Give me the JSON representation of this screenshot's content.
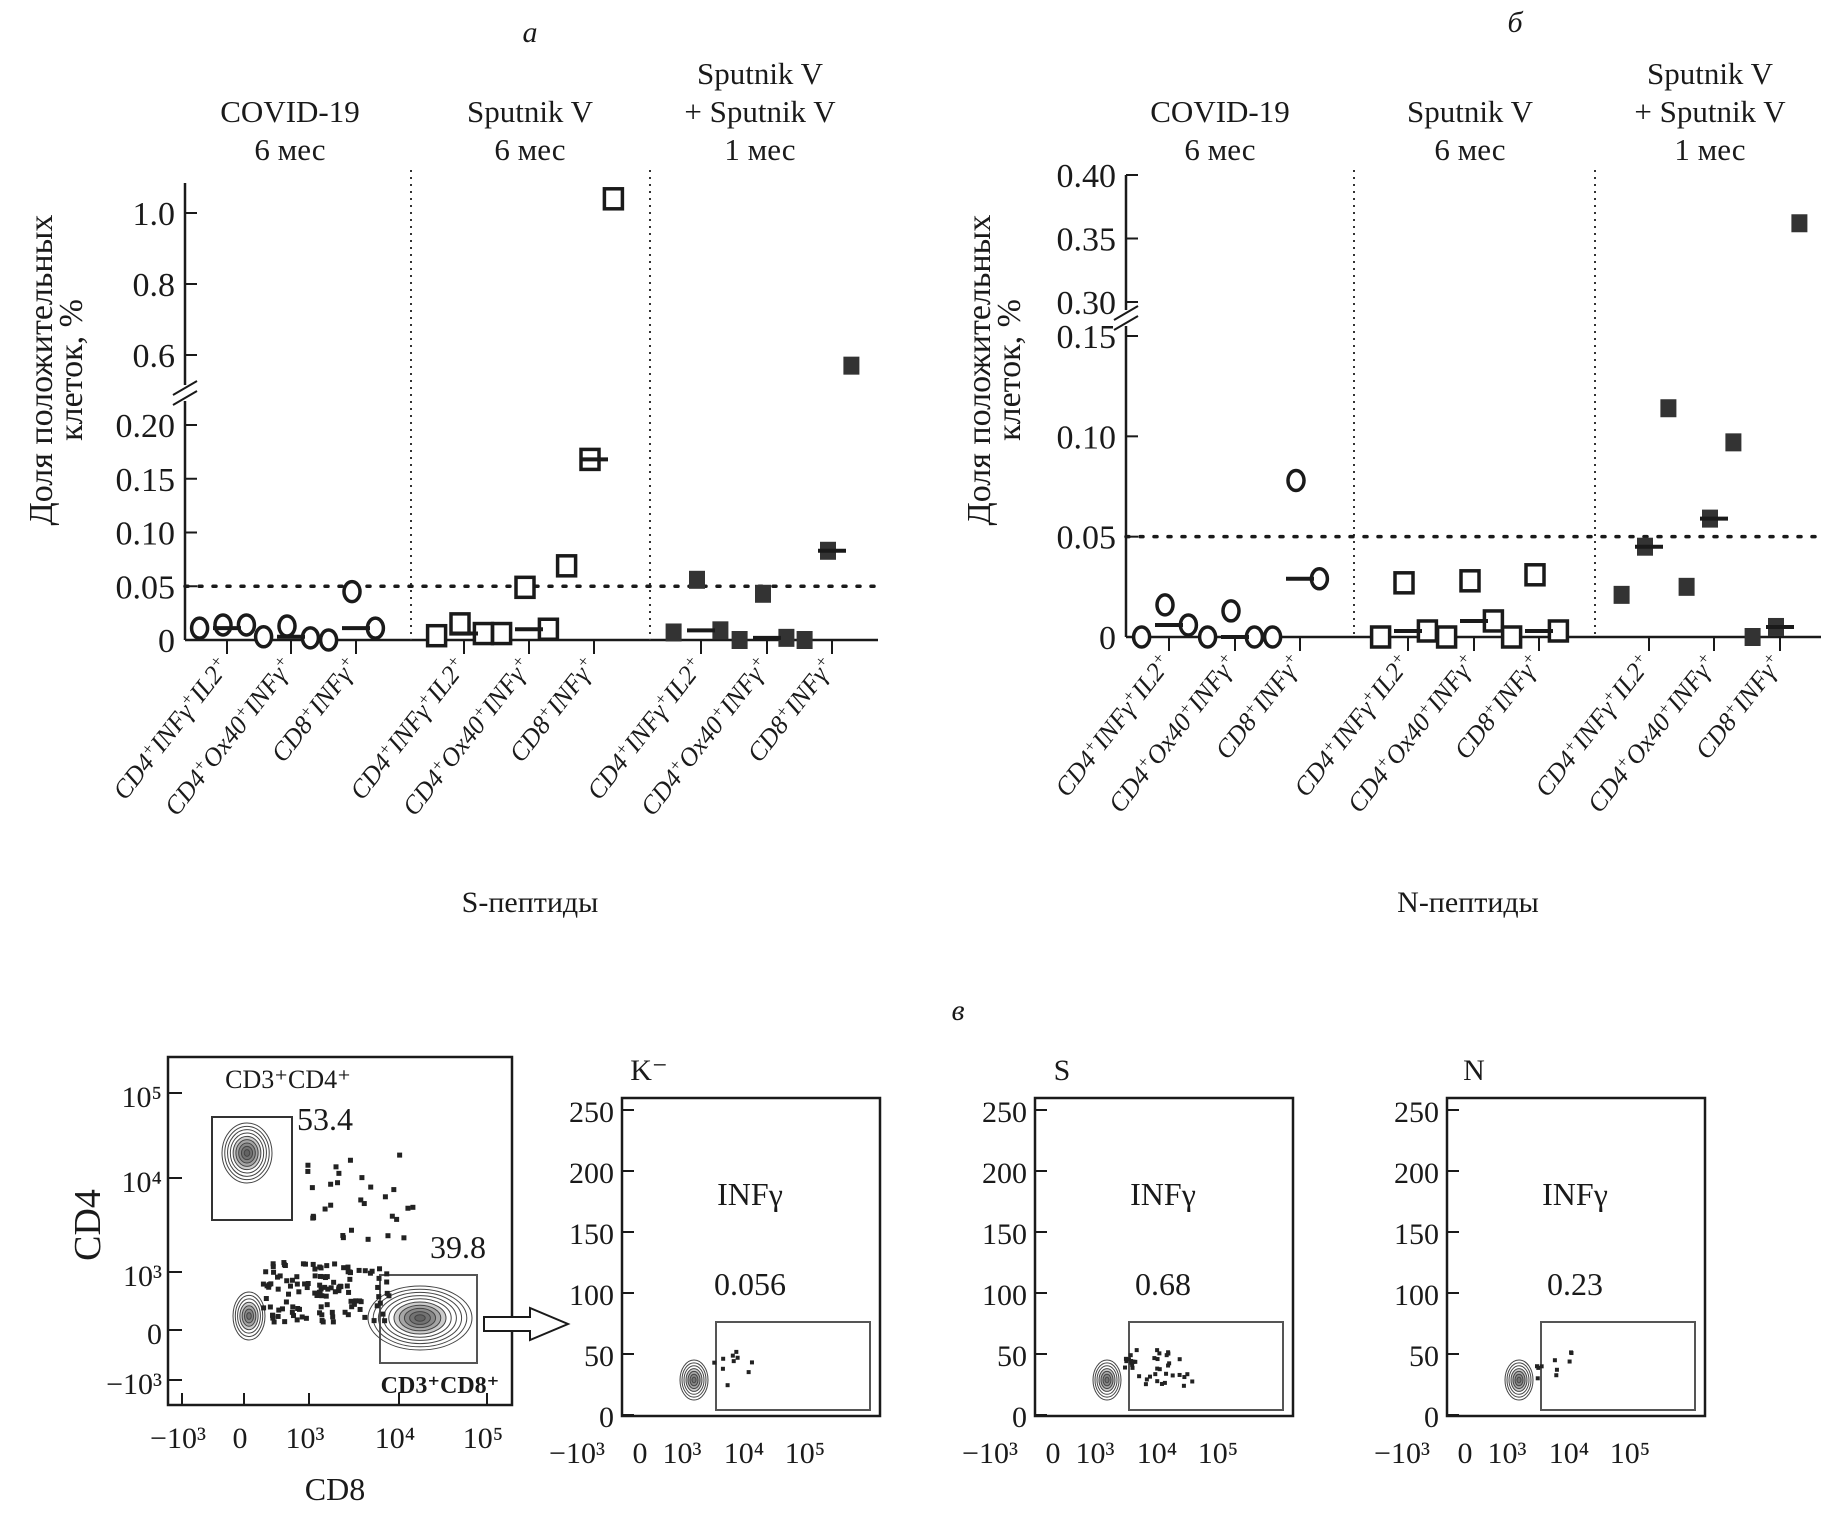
{
  "chart_data": [
    {
      "id": "a",
      "type": "scatter",
      "panel_label": "а",
      "title": "",
      "xlabel": "S-пептиды",
      "ylabel_line1": "Доля положительных",
      "ylabel_line2": "клеток, %",
      "y_axis_break": true,
      "ylim_lower": [
        0,
        0.2
      ],
      "ylim_upper": [
        0.5,
        1.1
      ],
      "yticks_lower": [
        "0",
        "0.05",
        "0.10",
        "0.15",
        "0.20"
      ],
      "yticks_lower_values": [
        0,
        0.05,
        0.1,
        0.15,
        0.2
      ],
      "yticks_upper": [
        "0.6",
        "0.8",
        "1.0"
      ],
      "yticks_upper_values": [
        0.6,
        0.8,
        1.0
      ],
      "threshold": 0.05,
      "groups": [
        {
          "title_lines": [
            "COVID-19",
            "6 мес"
          ],
          "marker": "circle-open"
        },
        {
          "title_lines": [
            "Sputnik V",
            "6 мес"
          ],
          "marker": "square-open"
        },
        {
          "title_lines": [
            "Sputnik V",
            "+ Sputnik V",
            "1 мес"
          ],
          "marker": "square-filled"
        }
      ],
      "categories": [
        {
          "main": "CD4",
          "sup1": "+",
          "mid": "INFγ",
          "sup2": "+",
          "tail": "IL2",
          "sup3": "+"
        },
        {
          "main": "CD4",
          "sup1": "+",
          "mid": "Ox40",
          "sup2": "+",
          "tail": "INFγ",
          "sup3": "+"
        },
        {
          "main": "CD8",
          "sup1": "+",
          "mid": "INFγ",
          "sup2": "+",
          "tail": "",
          "sup3": ""
        },
        {
          "main": "CD4",
          "sup1": "+",
          "mid": "INFγ",
          "sup2": "+",
          "tail": "IL2",
          "sup3": "+"
        },
        {
          "main": "CD4",
          "sup1": "+",
          "mid": "Ox40",
          "sup2": "+",
          "tail": "INFγ",
          "sup3": "+"
        },
        {
          "main": "CD8",
          "sup1": "+",
          "mid": "INFγ",
          "sup2": "+",
          "tail": "",
          "sup3": ""
        },
        {
          "main": "CD4",
          "sup1": "+",
          "mid": "INFγ",
          "sup2": "+",
          "tail": "IL2",
          "sup3": "+"
        },
        {
          "main": "CD4",
          "sup1": "+",
          "mid": "Ox40",
          "sup2": "+",
          "tail": "INFγ",
          "sup3": "+"
        },
        {
          "main": "CD8",
          "sup1": "+",
          "mid": "INFγ",
          "sup2": "+",
          "tail": "",
          "sup3": ""
        }
      ],
      "points": [
        [
          0.011,
          0.014,
          0.014
        ],
        [
          0.003,
          0.013,
          0.002
        ],
        [
          0.0,
          0.045,
          0.011
        ],
        [
          0.004,
          0.015,
          0.006
        ],
        [
          0.006,
          0.049,
          0.01
        ],
        [
          0.069,
          0.168,
          1.04
        ],
        [
          0.007,
          0.056,
          0.009
        ],
        [
          0.0,
          0.043,
          0.002
        ],
        [
          0.0,
          0.083,
          0.57
        ]
      ],
      "medians": [
        0.011,
        0.003,
        0.011,
        0.006,
        0.01,
        0.168,
        0.009,
        0.002,
        0.083
      ]
    },
    {
      "id": "b",
      "type": "scatter",
      "panel_label": "б",
      "title": "",
      "xlabel": "N-пептиды",
      "ylabel_line1": "Доля положительных",
      "ylabel_line2": "клеток, %",
      "y_axis_break": true,
      "ylim_lower": [
        0,
        0.15
      ],
      "ylim_upper": [
        0.3,
        0.4
      ],
      "yticks_lower": [
        "0",
        "0.05",
        "0.10",
        "0.15"
      ],
      "yticks_lower_values": [
        0,
        0.05,
        0.1,
        0.15
      ],
      "yticks_upper": [
        "0.30",
        "0.35",
        "0.40"
      ],
      "yticks_upper_values": [
        0.3,
        0.35,
        0.4
      ],
      "threshold": 0.05,
      "groups": [
        {
          "title_lines": [
            "COVID-19",
            "6 мес"
          ],
          "marker": "circle-open"
        },
        {
          "title_lines": [
            "Sputnik V",
            "6 мес"
          ],
          "marker": "square-open"
        },
        {
          "title_lines": [
            "Sputnik V",
            "+ Sputnik V",
            "1 мес"
          ],
          "marker": "square-filled"
        }
      ],
      "categories": [
        {
          "main": "CD4",
          "sup1": "+",
          "mid": "INFγ",
          "sup2": "+",
          "tail": "IL2",
          "sup3": "+"
        },
        {
          "main": "CD4",
          "sup1": "+",
          "mid": "Ox40",
          "sup2": "+",
          "tail": "INFγ",
          "sup3": "+"
        },
        {
          "main": "CD8",
          "sup1": "+",
          "mid": "INFγ",
          "sup2": "+",
          "tail": "",
          "sup3": ""
        },
        {
          "main": "CD4",
          "sup1": "+",
          "mid": "INFγ",
          "sup2": "+",
          "tail": "IL2",
          "sup3": "+"
        },
        {
          "main": "CD4",
          "sup1": "+",
          "mid": "Ox40",
          "sup2": "+",
          "tail": "INFγ",
          "sup3": "+"
        },
        {
          "main": "CD8",
          "sup1": "+",
          "mid": "INFγ",
          "sup2": "+",
          "tail": "",
          "sup3": ""
        },
        {
          "main": "CD4",
          "sup1": "+",
          "mid": "INFγ",
          "sup2": "+",
          "tail": "IL2",
          "sup3": "+"
        },
        {
          "main": "CD4",
          "sup1": "+",
          "mid": "Ox40",
          "sup2": "+",
          "tail": "INFγ",
          "sup3": "+"
        },
        {
          "main": "CD8",
          "sup1": "+",
          "mid": "INFγ",
          "sup2": "+",
          "tail": "",
          "sup3": ""
        }
      ],
      "points": [
        [
          0.0,
          0.016,
          0.006
        ],
        [
          0.0,
          0.013,
          0.0
        ],
        [
          0.0,
          0.078,
          0.029
        ],
        [
          0.0,
          0.027,
          0.003
        ],
        [
          0.0,
          0.028,
          0.008
        ],
        [
          0.0,
          0.031,
          0.003
        ],
        [
          0.021,
          0.045,
          0.114
        ],
        [
          0.025,
          0.059,
          0.097
        ],
        [
          0.0,
          0.005,
          0.362
        ]
      ],
      "medians": [
        0.006,
        0.0,
        0.029,
        0.003,
        0.008,
        0.003,
        0.045,
        0.059,
        0.005
      ]
    }
  ],
  "flow": {
    "panel_label": "в",
    "gating_plot": {
      "xlabel": "CD8",
      "ylabel": "CD4",
      "xticks": [
        "−10³",
        "0",
        "10³",
        "10⁴",
        "10⁵"
      ],
      "yticks": [
        "10⁵",
        "10⁴",
        "10³",
        "0",
        "−10³"
      ],
      "gate_cd4_label": "CD3⁺CD4⁺",
      "gate_cd4_value": "53.4",
      "gate_cd8_label": "CD3⁺CD8⁺",
      "gate_cd8_value": "39.8"
    },
    "panels": [
      {
        "title": "K⁻",
        "gate_label": "INFγ",
        "gate_value": "0.056"
      },
      {
        "title": "S",
        "gate_label": "INFγ",
        "gate_value": "0.68"
      },
      {
        "title": "N",
        "gate_label": "INFγ",
        "gate_value": "0.23"
      }
    ],
    "yticks": [
      "250",
      "200",
      "150",
      "100",
      "50",
      "0"
    ],
    "xticks": [
      "−10³",
      "0",
      "10³",
      "10⁴",
      "10⁵"
    ]
  }
}
